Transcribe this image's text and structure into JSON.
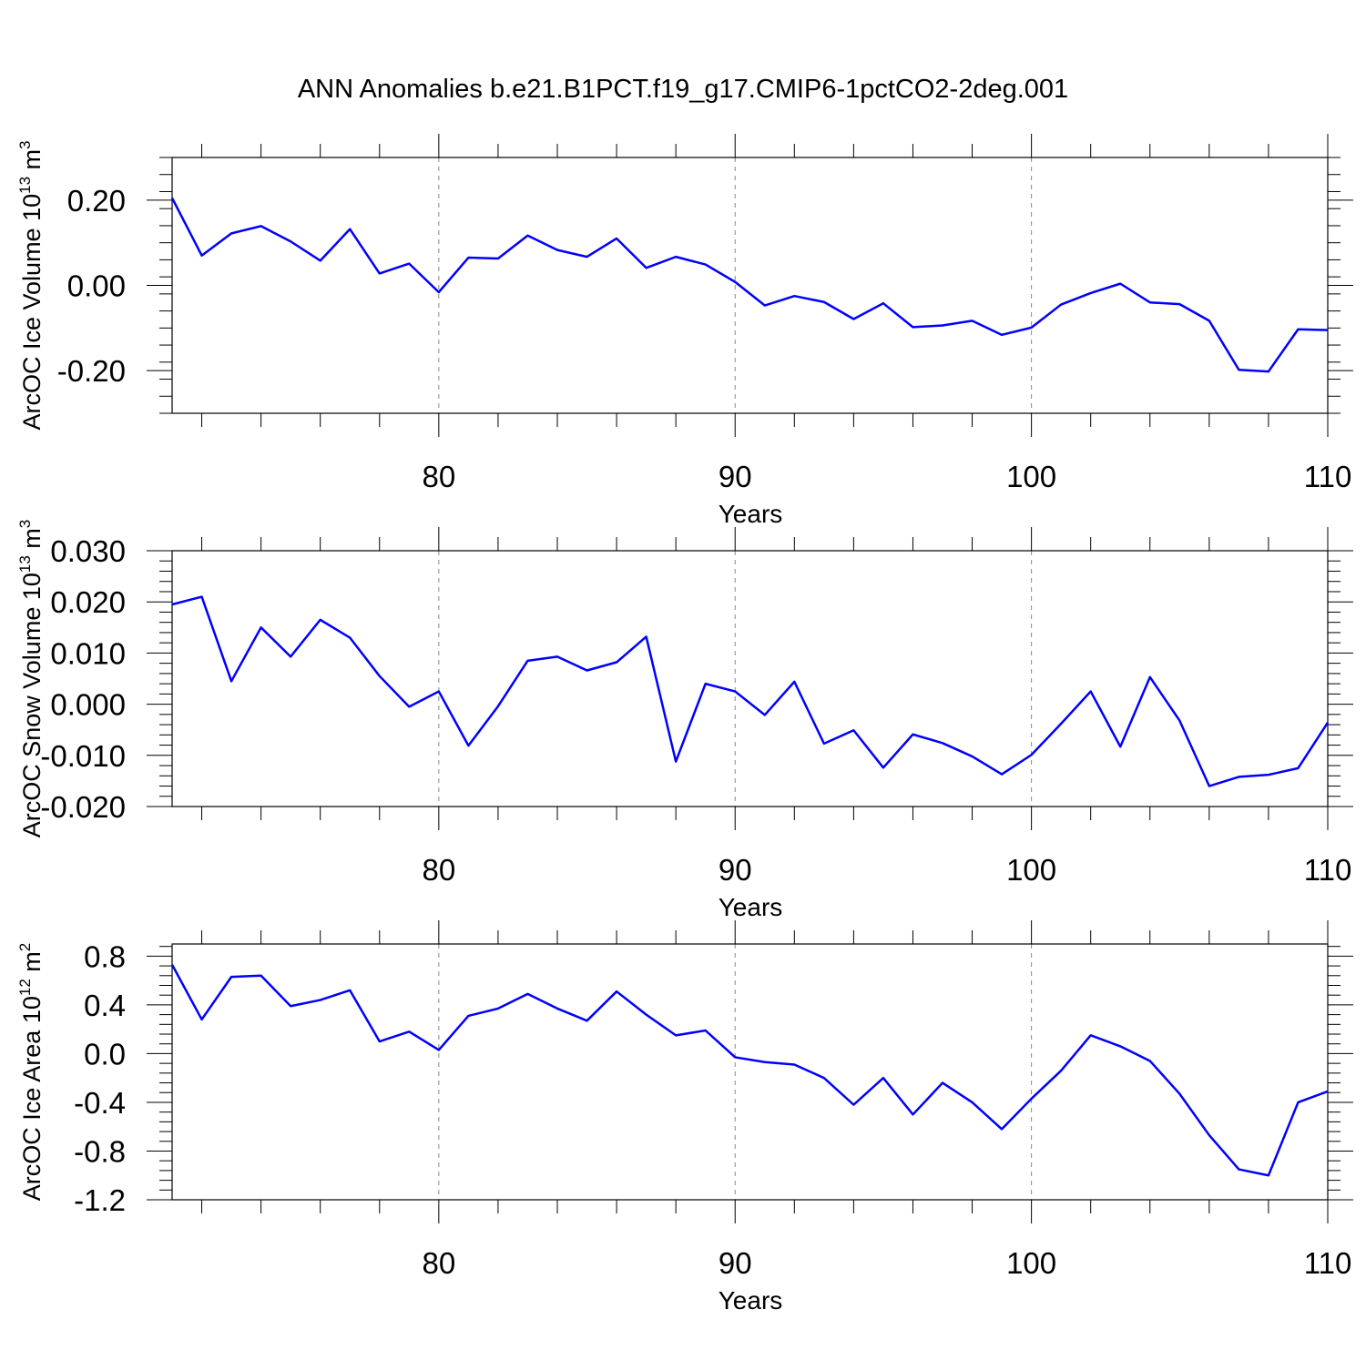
{
  "title": "ANN Anomalies b.e21.B1PCT.f19_g17.CMIP6-1pctCO2-2deg.001",
  "chart_data": [
    {
      "type": "line",
      "ylabel": "ArcOC Ice Volume 10",
      "ylabel_exp": "13",
      "ylabel_unit": " m",
      "ylabel_unit_exp": "3",
      "xlabel": "Years",
      "xlim": [
        71,
        110
      ],
      "ylim": [
        -0.3,
        0.3
      ],
      "x_ticks": [
        80,
        90,
        100,
        110
      ],
      "x_tick_labels": [
        "80",
        "90",
        "100",
        "110"
      ],
      "y_ticks": [
        -0.2,
        0.0,
        0.2
      ],
      "y_tick_labels": [
        "-0.20",
        "0.00",
        "0.20"
      ],
      "line_color": "#0000ff",
      "grid": "dashed vertical at major x ticks",
      "x": [
        71,
        72,
        73,
        74,
        75,
        76,
        77,
        78,
        79,
        80,
        81,
        82,
        83,
        84,
        85,
        86,
        87,
        88,
        89,
        90,
        91,
        92,
        93,
        94,
        95,
        96,
        97,
        98,
        99,
        100,
        101,
        102,
        103,
        104,
        105,
        106,
        107,
        108,
        109,
        110
      ],
      "values": [
        0.205,
        0.07,
        0.122,
        0.139,
        0.103,
        0.058,
        0.132,
        0.028,
        0.051,
        -0.016,
        0.065,
        0.063,
        0.117,
        0.083,
        0.067,
        0.11,
        0.041,
        0.067,
        0.049,
        0.008,
        -0.047,
        -0.025,
        -0.039,
        -0.079,
        -0.042,
        -0.098,
        -0.094,
        -0.083,
        -0.116,
        -0.099,
        -0.045,
        -0.018,
        0.004,
        -0.04,
        -0.044,
        -0.083,
        -0.198,
        -0.202,
        -0.103,
        -0.105
      ]
    },
    {
      "type": "line",
      "ylabel": "ArcOC Snow Volume 10",
      "ylabel_exp": "13",
      "ylabel_unit": " m",
      "ylabel_unit_exp": "3",
      "xlabel": "Years",
      "xlim": [
        71,
        110
      ],
      "ylim": [
        -0.02,
        0.03
      ],
      "x_ticks": [
        80,
        90,
        100,
        110
      ],
      "x_tick_labels": [
        "80",
        "90",
        "100",
        "110"
      ],
      "y_ticks": [
        -0.02,
        -0.01,
        0.0,
        0.01,
        0.02,
        0.03
      ],
      "y_tick_labels": [
        "-0.020",
        "-0.010",
        "0.000",
        "0.010",
        "0.020",
        "0.030"
      ],
      "line_color": "#0000ff",
      "grid": "dashed vertical at major x ticks",
      "x": [
        71,
        72,
        73,
        74,
        75,
        76,
        77,
        78,
        79,
        80,
        81,
        82,
        83,
        84,
        85,
        86,
        87,
        88,
        89,
        90,
        91,
        92,
        93,
        94,
        95,
        96,
        97,
        98,
        99,
        100,
        101,
        102,
        103,
        104,
        105,
        106,
        107,
        108,
        109,
        110
      ],
      "values": [
        0.0195,
        0.021,
        0.0045,
        0.015,
        0.0093,
        0.0165,
        0.013,
        0.0055,
        -0.0005,
        0.0025,
        -0.0081,
        -0.0004,
        0.0085,
        0.0093,
        0.0066,
        0.0082,
        0.0132,
        -0.0112,
        0.004,
        0.0025,
        -0.0021,
        0.0044,
        -0.0077,
        -0.0051,
        -0.0124,
        -0.0059,
        -0.0076,
        -0.0102,
        -0.0137,
        -0.0099,
        -0.0038,
        0.0025,
        -0.0083,
        0.0053,
        -0.0032,
        -0.016,
        -0.0142,
        -0.0138,
        -0.0125,
        -0.0036
      ]
    },
    {
      "type": "line",
      "ylabel": "ArcOC Ice Area 10",
      "ylabel_exp": "12",
      "ylabel_unit": " m",
      "ylabel_unit_exp": "2",
      "xlabel": "Years",
      "xlim": [
        71,
        110
      ],
      "ylim": [
        -1.2,
        0.9
      ],
      "x_ticks": [
        80,
        90,
        100,
        110
      ],
      "x_tick_labels": [
        "80",
        "90",
        "100",
        "110"
      ],
      "y_ticks": [
        -1.2,
        -0.8,
        -0.4,
        0.0,
        0.4,
        0.8
      ],
      "y_tick_labels": [
        "-1.2",
        "-0.8",
        "-0.4",
        "0.0",
        "0.4",
        "0.8"
      ],
      "line_color": "#0000ff",
      "grid": "dashed vertical at major x ticks",
      "x": [
        71,
        72,
        73,
        74,
        75,
        76,
        77,
        78,
        79,
        80,
        81,
        82,
        83,
        84,
        85,
        86,
        87,
        88,
        89,
        90,
        91,
        92,
        93,
        94,
        95,
        96,
        97,
        98,
        99,
        100,
        101,
        102,
        103,
        104,
        105,
        106,
        107,
        108,
        109,
        110
      ],
      "values": [
        0.73,
        0.28,
        0.63,
        0.64,
        0.39,
        0.44,
        0.52,
        0.1,
        0.18,
        0.03,
        0.31,
        0.37,
        0.49,
        0.37,
        0.27,
        0.51,
        0.32,
        0.15,
        0.19,
        -0.03,
        -0.07,
        -0.09,
        -0.2,
        -0.42,
        -0.2,
        -0.5,
        -0.24,
        -0.4,
        -0.62,
        -0.37,
        -0.14,
        0.15,
        0.06,
        -0.06,
        -0.33,
        -0.67,
        -0.95,
        -1.0,
        -0.4,
        -0.31
      ]
    }
  ]
}
